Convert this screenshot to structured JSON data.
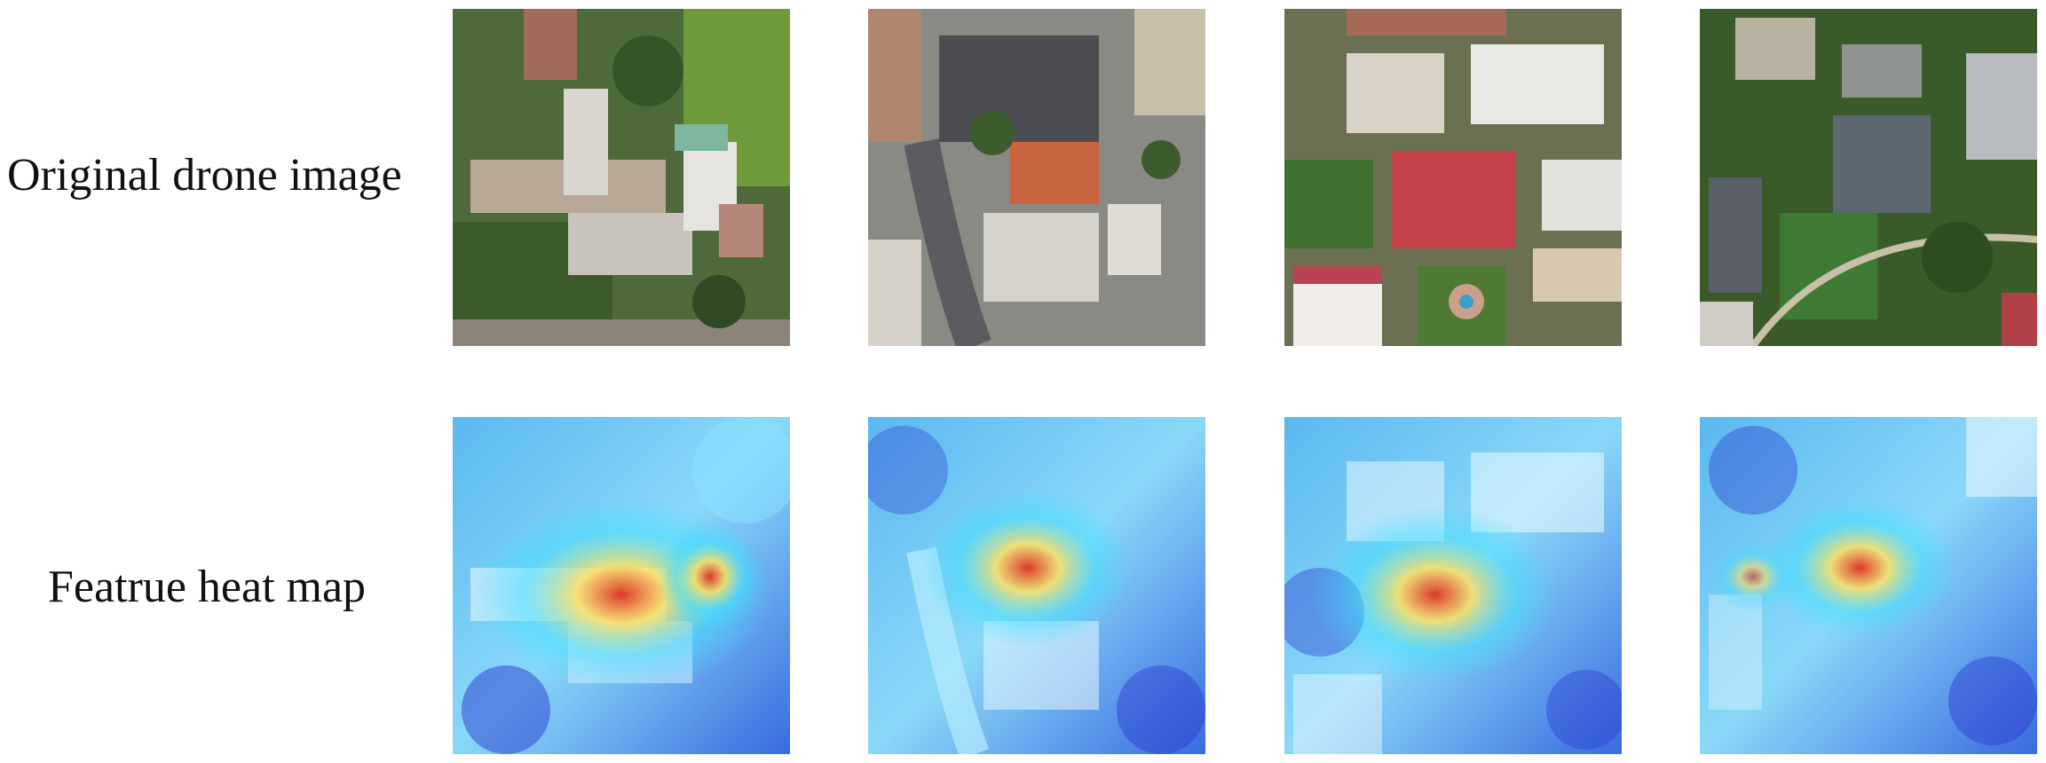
{
  "rows": [
    {
      "label": "Original drone image",
      "kind": "original"
    },
    {
      "label": "Featrue heat map",
      "kind": "heatmap"
    }
  ],
  "scenes": [
    {
      "id": "scene-1",
      "hotspot": [
        0.5,
        0.55
      ]
    },
    {
      "id": "scene-2",
      "hotspot": [
        0.47,
        0.45
      ]
    },
    {
      "id": "scene-3",
      "hotspot": [
        0.45,
        0.52
      ]
    },
    {
      "id": "scene-4",
      "hotspot": [
        0.47,
        0.44
      ]
    }
  ],
  "colors": {
    "heat_low": "#2040e0",
    "heat_mid": "#40e0ff",
    "heat_high": "#ffe060",
    "heat_peak": "#e03020"
  }
}
